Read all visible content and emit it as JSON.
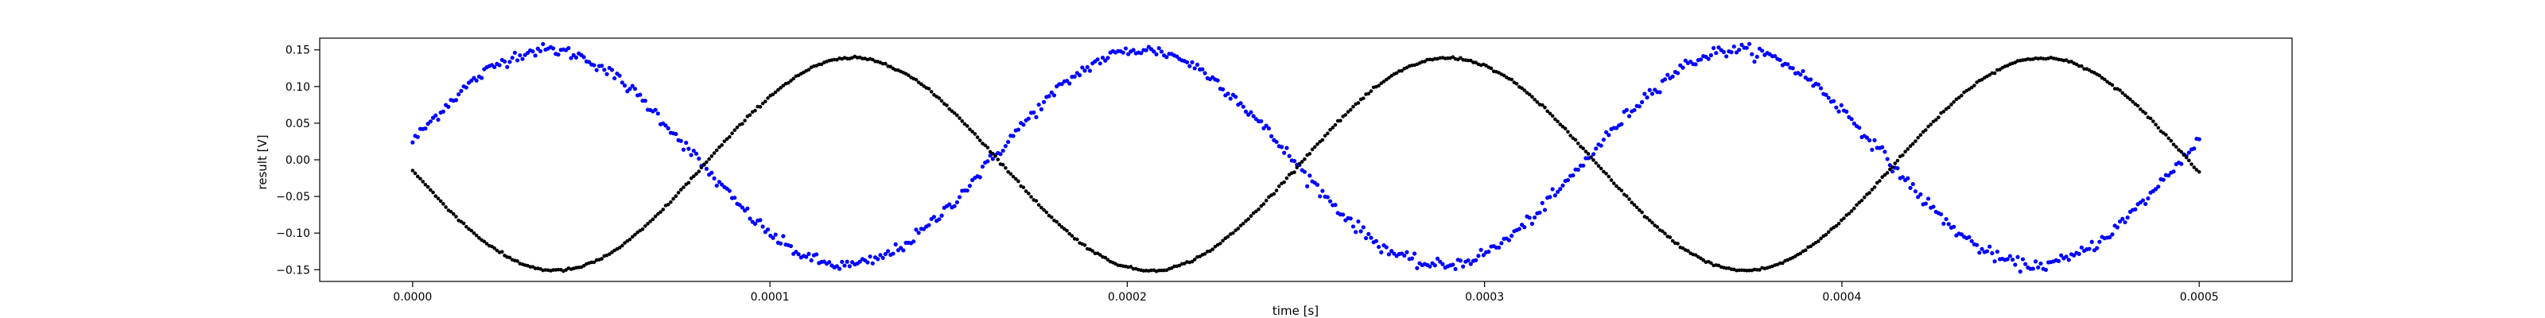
{
  "chart_data": {
    "type": "scatter",
    "title": "",
    "xlabel": "time [s]",
    "ylabel": "result [V]",
    "xlim": [
      -2.6e-05,
      0.000526
    ],
    "ylim": [
      -0.166,
      0.166
    ],
    "xticks": [
      0.0,
      0.0001,
      0.0002,
      0.0003,
      0.0004,
      0.0005
    ],
    "xtick_labels": [
      "0.0000",
      "0.0001",
      "0.0002",
      "0.0003",
      "0.0004",
      "0.0005"
    ],
    "yticks": [
      -0.15,
      -0.1,
      -0.05,
      0.0,
      0.05,
      0.1,
      0.15
    ],
    "ytick_labels": [
      "−0.15",
      "−0.10",
      "−0.05",
      "0.00",
      "0.05",
      "0.10",
      "0.15"
    ],
    "grid": false,
    "legend": "none",
    "series": [
      {
        "color": "#0000ff",
        "marker": "point",
        "description_sine": {
          "amplitude": 0.147,
          "period_s": 0.0001665,
          "phase_rad": 0.15,
          "offset": 0.003,
          "noise": 0.004
        },
        "t_range": [
          0.0,
          0.0005
        ],
        "n_points": 700
      },
      {
        "color": "#000000",
        "marker": "point",
        "description_sine": {
          "amplitude": 0.145,
          "period_s": 0.0001665,
          "phase_rad": 3.2,
          "offset": -0.006,
          "noise": 0.0008
        },
        "t_range": [
          0.0,
          0.0005
        ],
        "n_points": 700
      }
    ]
  }
}
